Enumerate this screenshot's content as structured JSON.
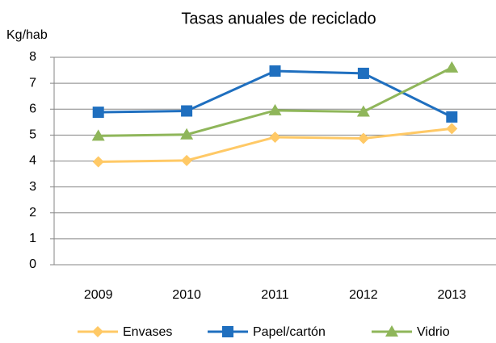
{
  "chart_data": {
    "type": "line",
    "title": "Tasas anuales de reciclado",
    "y_label": "Kg/hab",
    "categories": [
      "2009",
      "2010",
      "2011",
      "2012",
      "2013"
    ],
    "series": [
      {
        "name": "Envases",
        "color": "#ffc966",
        "marker": "diamond",
        "values": [
          3.97,
          4.02,
          4.92,
          4.87,
          5.25
        ]
      },
      {
        "name": "Papel/cartón",
        "color": "#1f6fbf",
        "marker": "square",
        "values": [
          5.88,
          5.93,
          7.47,
          7.38,
          5.7
        ]
      },
      {
        "name": "Vidrio",
        "color": "#8fb65a",
        "marker": "triangle",
        "values": [
          4.97,
          5.02,
          5.95,
          5.9,
          7.6
        ]
      }
    ],
    "ylim": [
      0,
      8
    ],
    "yticks": [
      0,
      1,
      2,
      3,
      4,
      5,
      6,
      7,
      8
    ],
    "grid": true,
    "legend": "bottom"
  }
}
